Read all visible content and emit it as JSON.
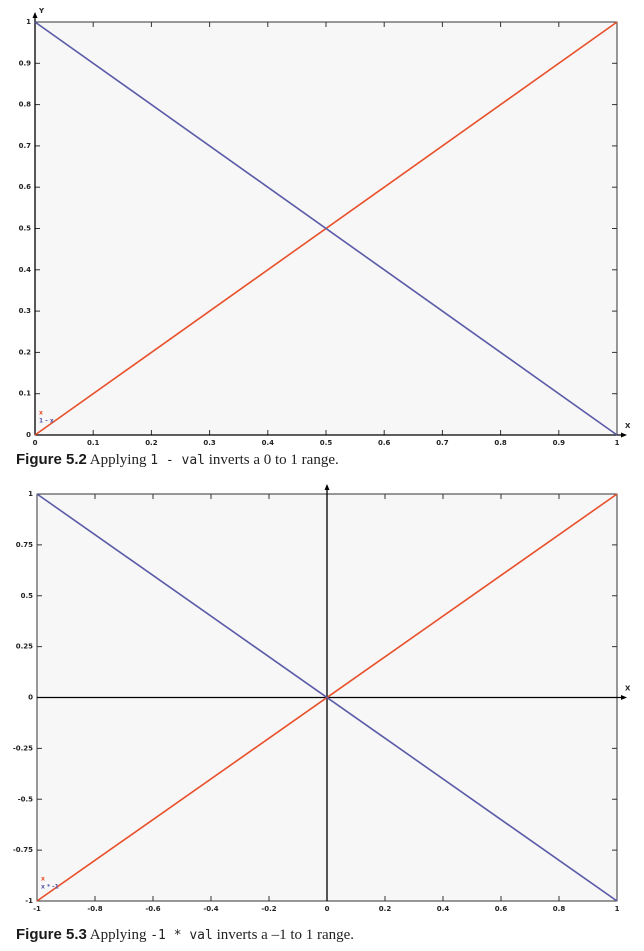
{
  "chart_data": [
    {
      "type": "line",
      "x_label": "X",
      "y_label": "Y",
      "x": [
        0,
        1
      ],
      "series": [
        {
          "name": "x",
          "color": "#e8502a",
          "values": [
            0,
            1
          ]
        },
        {
          "name": "1 - x",
          "color": "#5a5aa8",
          "values": [
            1,
            0
          ]
        }
      ],
      "xlim": [
        0,
        1
      ],
      "ylim": [
        0,
        1
      ],
      "xticks": [
        0,
        0.1,
        0.2,
        0.3,
        0.4,
        0.5,
        0.6,
        0.7,
        0.8,
        0.9,
        1
      ],
      "yticks": [
        0,
        0.1,
        0.2,
        0.3,
        0.4,
        0.5,
        0.6,
        0.7,
        0.8,
        0.9,
        1
      ],
      "grid": false,
      "axes_through_origin": false,
      "legend": "lower left",
      "caption": {
        "label": "Figure 5.2",
        "parts": [
          "Applying ",
          "1 - val",
          " inverts a 0 to 1 range."
        ]
      }
    },
    {
      "type": "line",
      "x_label": "X",
      "x": [
        -1,
        1
      ],
      "series": [
        {
          "name": "x",
          "color": "#e8502a",
          "values": [
            -1,
            1
          ]
        },
        {
          "name": "x * -1",
          "color": "#5a5aa8",
          "values": [
            1,
            -1
          ]
        }
      ],
      "xlim": [
        -1,
        1
      ],
      "ylim": [
        -1,
        1
      ],
      "xticks": [
        -1,
        -0.8,
        -0.6,
        -0.4,
        -0.2,
        0,
        0.2,
        0.4,
        0.6,
        0.8,
        1
      ],
      "yticks": [
        -1,
        -0.75,
        -0.5,
        -0.25,
        0,
        0.25,
        0.5,
        0.75,
        1
      ],
      "grid": false,
      "axes_through_origin": true,
      "legend": "lower left",
      "caption": {
        "label": "Figure 5.3",
        "parts": [
          "Applying ",
          "-1 * val",
          " inverts a –1 to 1 range."
        ]
      }
    }
  ]
}
